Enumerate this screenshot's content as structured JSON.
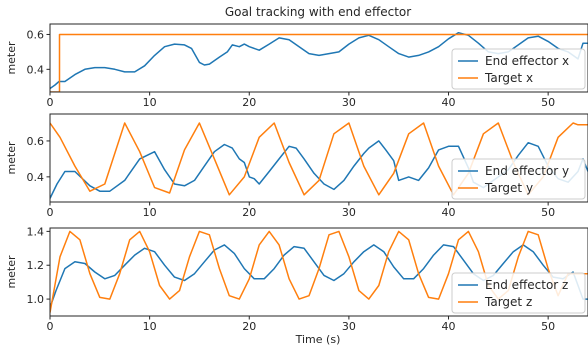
{
  "chart_data": {
    "type": "line",
    "title": "Goal tracking with end effector",
    "xlabel": "Time (s)",
    "colors": {
      "end_effector": "#1f77b4",
      "target": "#ff7f0e"
    },
    "legend_position": "right",
    "panels": [
      {
        "ylabel": "meter",
        "xlim": [
          0,
          54
        ],
        "ylim": [
          0.27,
          0.66
        ],
        "xticks": [
          0,
          10,
          20,
          30,
          40,
          50
        ],
        "yticks": [
          0.4,
          0.6
        ],
        "ytick_labels": [
          "0.4",
          "0.6"
        ],
        "series": [
          {
            "name": "End effector x",
            "x": [
              0,
              0.5,
              0.9,
              1.5,
              2.5,
              3.5,
              4.5,
              5.5,
              6.5,
              7.5,
              8.5,
              9.5,
              10.5,
              11.5,
              12.5,
              13.5,
              14.2,
              15,
              15.5,
              16,
              17,
              17.8,
              18.3,
              19,
              19.5,
              20,
              21,
              22,
              23,
              24,
              25,
              26,
              27,
              28,
              29,
              30,
              31,
              32,
              33,
              34,
              35,
              36,
              37,
              38,
              39,
              40,
              41,
              42,
              43,
              44,
              45,
              46,
              47,
              48,
              49,
              50,
              51,
              52,
              53,
              53.5,
              54
            ],
            "y": [
              0.29,
              0.31,
              0.33,
              0.33,
              0.37,
              0.4,
              0.41,
              0.41,
              0.4,
              0.385,
              0.385,
              0.42,
              0.48,
              0.53,
              0.545,
              0.54,
              0.52,
              0.44,
              0.425,
              0.43,
              0.47,
              0.5,
              0.54,
              0.53,
              0.545,
              0.53,
              0.51,
              0.545,
              0.58,
              0.57,
              0.53,
              0.49,
              0.48,
              0.49,
              0.5,
              0.545,
              0.58,
              0.595,
              0.57,
              0.53,
              0.49,
              0.47,
              0.48,
              0.5,
              0.53,
              0.575,
              0.61,
              0.595,
              0.55,
              0.5,
              0.49,
              0.5,
              0.54,
              0.58,
              0.59,
              0.56,
              0.52,
              0.5,
              0.46,
              0.55,
              0.55
            ]
          },
          {
            "name": "Target x",
            "x": [
              0,
              0.95,
              0.95,
              1,
              54
            ],
            "y": [
              0.27,
              0.27,
              0.6,
              0.6,
              0.6
            ]
          }
        ]
      },
      {
        "ylabel": "meter",
        "xlim": [
          0,
          54
        ],
        "ylim": [
          0.26,
          0.75
        ],
        "xticks": [
          0,
          10,
          20,
          30,
          40,
          50
        ],
        "yticks": [
          0.4,
          0.6
        ],
        "ytick_labels": [
          "0.4",
          "0.6"
        ],
        "series": [
          {
            "name": "End effector y",
            "x": [
              0,
              0.7,
              1.5,
              2.5,
              4,
              5,
              6,
              7.5,
              9,
              10.5,
              11.5,
              12.5,
              13.5,
              14.5,
              15.5,
              16.5,
              17.5,
              18.3,
              19,
              19.5,
              20,
              20.5,
              21,
              22,
              23,
              24,
              24.7,
              25.5,
              26.5,
              27.5,
              28.5,
              29.5,
              30.5,
              31.5,
              32,
              33,
              33.7,
              34.5,
              35,
              36,
              37,
              38,
              39,
              40,
              41,
              42,
              42.5,
              43.5,
              44,
              45,
              46,
              47,
              48,
              49,
              50,
              51,
              52,
              53,
              53.5,
              54
            ],
            "y": [
              0.28,
              0.36,
              0.43,
              0.43,
              0.35,
              0.32,
              0.32,
              0.38,
              0.5,
              0.54,
              0.44,
              0.36,
              0.35,
              0.38,
              0.46,
              0.54,
              0.58,
              0.56,
              0.5,
              0.48,
              0.4,
              0.39,
              0.36,
              0.43,
              0.5,
              0.57,
              0.56,
              0.5,
              0.42,
              0.36,
              0.33,
              0.38,
              0.46,
              0.53,
              0.56,
              0.6,
              0.55,
              0.49,
              0.38,
              0.4,
              0.38,
              0.45,
              0.55,
              0.57,
              0.57,
              0.45,
              0.37,
              0.34,
              0.36,
              0.4,
              0.44,
              0.52,
              0.59,
              0.57,
              0.46,
              0.39,
              0.37,
              0.43,
              0.5,
              0.43
            ]
          },
          {
            "name": "Target y",
            "x": [
              0,
              1,
              2.5,
              4,
              5.5,
              7.5,
              9,
              10.5,
              12,
              13.5,
              15,
              16.5,
              18,
              19.5,
              21,
              22.5,
              24,
              25.5,
              27,
              28.5,
              30,
              31.5,
              33,
              34.5,
              36,
              37.5,
              39,
              40.5,
              42,
              43.5,
              45,
              46.5,
              48,
              49.5,
              51,
              52.5,
              53,
              53.5,
              54
            ],
            "y": [
              0.7,
              0.62,
              0.46,
              0.32,
              0.36,
              0.7,
              0.54,
              0.34,
              0.31,
              0.55,
              0.7,
              0.5,
              0.3,
              0.4,
              0.62,
              0.7,
              0.48,
              0.3,
              0.38,
              0.64,
              0.7,
              0.46,
              0.3,
              0.42,
              0.64,
              0.7,
              0.46,
              0.3,
              0.42,
              0.64,
              0.7,
              0.48,
              0.3,
              0.4,
              0.62,
              0.7,
              0.69,
              0.69,
              0.69
            ]
          }
        ]
      },
      {
        "ylabel": "meter",
        "xlim": [
          0,
          54
        ],
        "ylim": [
          0.9,
          1.42
        ],
        "xticks": [
          0,
          10,
          20,
          30,
          40,
          50
        ],
        "yticks": [
          1.0,
          1.2,
          1.4
        ],
        "ytick_labels": [
          "1.0",
          "1.2",
          "1.4"
        ],
        "series": [
          {
            "name": "End effector z",
            "x": [
              0,
              0.6,
              1.5,
              2.5,
              3.5,
              4.5,
              5.5,
              6.5,
              7.5,
              8.5,
              9.5,
              10.5,
              11.5,
              12.5,
              13.5,
              14.5,
              15.5,
              16.5,
              17.5,
              18.5,
              19.5,
              20.5,
              21.5,
              22.5,
              23.5,
              24.5,
              25.5,
              26.5,
              27.5,
              28.5,
              29.5,
              30.5,
              31.5,
              32.5,
              33.5,
              34.5,
              35.5,
              36.5,
              37.5,
              38.5,
              39.5,
              40.5,
              41.5,
              42.5,
              43.5,
              44.5,
              45.5,
              46.5,
              47.5,
              48.5,
              49.5,
              50.5,
              51.5,
              52.5,
              53.5,
              54
            ],
            "y": [
              0.95,
              1.05,
              1.18,
              1.22,
              1.21,
              1.16,
              1.12,
              1.14,
              1.2,
              1.26,
              1.3,
              1.28,
              1.2,
              1.13,
              1.11,
              1.15,
              1.22,
              1.29,
              1.32,
              1.27,
              1.18,
              1.12,
              1.12,
              1.18,
              1.26,
              1.31,
              1.3,
              1.22,
              1.14,
              1.11,
              1.15,
              1.22,
              1.28,
              1.32,
              1.28,
              1.19,
              1.12,
              1.12,
              1.18,
              1.26,
              1.32,
              1.31,
              1.23,
              1.15,
              1.11,
              1.14,
              1.21,
              1.28,
              1.32,
              1.28,
              1.2,
              1.13,
              1.12,
              1.16,
              1.0,
              1.0
            ]
          },
          {
            "name": "Target z",
            "x": [
              0,
              1,
              2,
              3,
              4,
              5,
              6,
              7,
              8,
              9,
              10,
              11,
              12,
              13,
              14,
              15,
              16,
              17,
              18,
              19,
              20,
              21,
              22,
              23,
              24,
              25,
              26,
              27,
              28,
              29,
              30,
              31,
              32,
              33,
              34,
              35,
              36,
              37,
              38,
              39,
              40,
              41,
              42,
              43,
              44,
              45,
              46,
              47,
              48,
              49,
              50,
              51,
              52,
              53,
              54
            ],
            "y": [
              0.92,
              1.25,
              1.4,
              1.35,
              1.15,
              1.01,
              1.0,
              1.15,
              1.35,
              1.4,
              1.28,
              1.08,
              1.0,
              1.05,
              1.25,
              1.4,
              1.38,
              1.18,
              1.02,
              1.0,
              1.12,
              1.32,
              1.4,
              1.32,
              1.12,
              1.0,
              1.02,
              1.18,
              1.38,
              1.4,
              1.25,
              1.05,
              1.0,
              1.08,
              1.28,
              1.4,
              1.35,
              1.15,
              1.01,
              1.0,
              1.15,
              1.35,
              1.4,
              1.28,
              1.08,
              1.0,
              1.05,
              1.25,
              1.4,
              1.38,
              1.18,
              1.02,
              1.15,
              1.15,
              1.15
            ]
          }
        ]
      }
    ]
  }
}
